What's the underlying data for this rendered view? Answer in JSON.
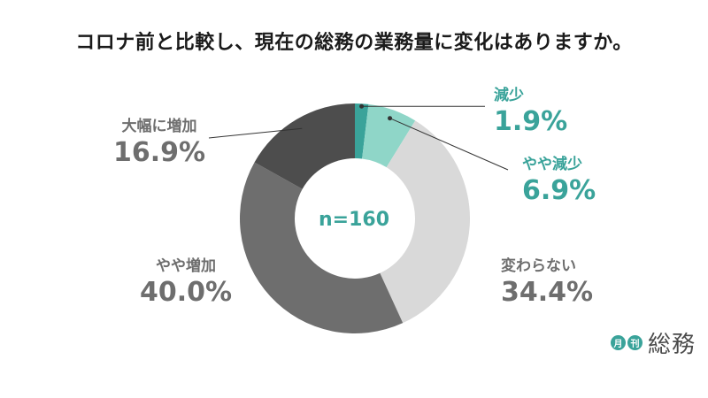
{
  "chart_data": {
    "type": "pie",
    "subtype": "donut",
    "title": "コロナ前と比較し、現在の総務の業務量に変化はありますか。",
    "center_label": "n=160",
    "slices": [
      {
        "label": "減少",
        "value": 1.9,
        "value_label": "1.9%",
        "color": "#3aa39a"
      },
      {
        "label": "やや減少",
        "value": 6.9,
        "value_label": "6.9%",
        "color": "#8fd6c8"
      },
      {
        "label": "変わらない",
        "value": 34.4,
        "value_label": "34.4%",
        "color": "#d9d9d9"
      },
      {
        "label": "やや増加",
        "value": 40.0,
        "value_label": "40.0%",
        "color": "#6e6e6e"
      },
      {
        "label": "大幅に増加",
        "value": 16.9,
        "value_label": "16.9%",
        "color": "#4d4d4d"
      }
    ]
  },
  "logo": {
    "mark1": "月",
    "mark2": "刊",
    "text": "総務"
  }
}
